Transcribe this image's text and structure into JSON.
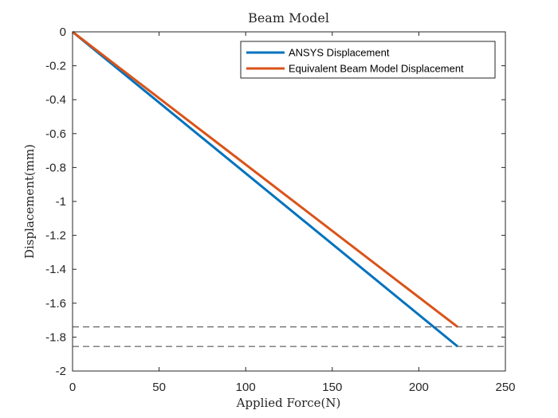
{
  "chart_data": {
    "type": "line",
    "title": "Beam Model",
    "xlabel": "Applied Force(N)",
    "ylabel": "Displacement(mm)",
    "xlim": [
      0,
      250
    ],
    "ylim": [
      -2,
      0
    ],
    "xticks": [
      0,
      50,
      100,
      150,
      200,
      250
    ],
    "yticks": [
      0,
      -0.2,
      -0.4,
      -0.6,
      -0.8,
      -1,
      -1.2,
      -1.4,
      -1.6,
      -1.8,
      -2
    ],
    "xtick_labels": [
      "0",
      "50",
      "100",
      "150",
      "200",
      "250"
    ],
    "ytick_labels": [
      "0",
      "-0.2",
      "-0.4",
      "-0.6",
      "-0.8",
      "-1",
      "-1.2",
      "-1.4",
      "-1.6",
      "-1.8",
      "-2"
    ],
    "grid": false,
    "legend_position": "top-right",
    "series": [
      {
        "name": "ANSYS Displacement",
        "color": "#0072BD",
        "x": [
          0,
          222.4
        ],
        "y": [
          0,
          -1.855
        ]
      },
      {
        "name": "Equivalent Beam Model Displacement",
        "color": "#D95319",
        "x": [
          0,
          222.4
        ],
        "y": [
          0,
          -1.74
        ]
      }
    ],
    "reference_lines": [
      {
        "axis": "y",
        "value": -1.74,
        "style": "dashed",
        "color": "#404040"
      },
      {
        "axis": "y",
        "value": -1.855,
        "style": "dashed",
        "color": "#404040"
      }
    ]
  }
}
